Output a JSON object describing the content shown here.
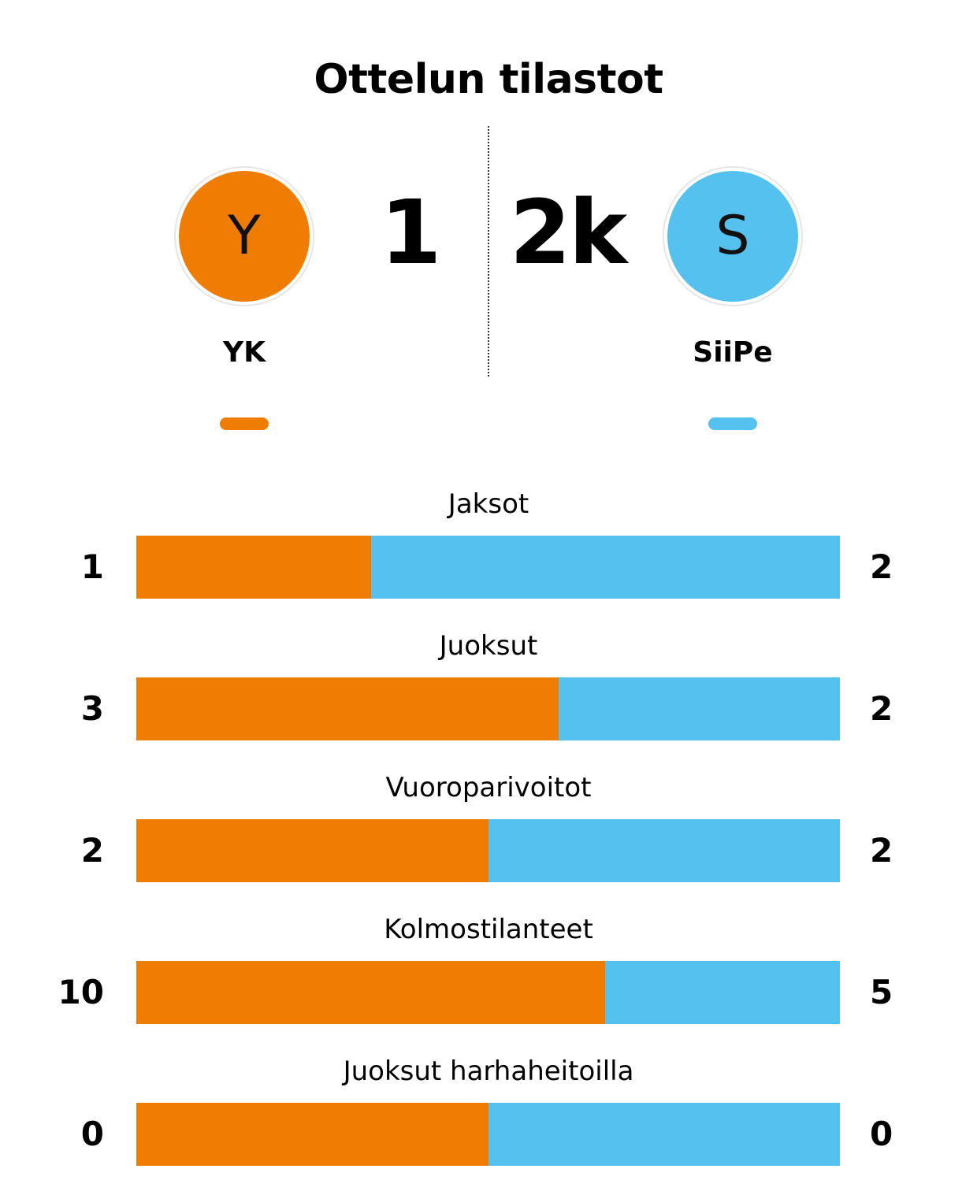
{
  "title": "Ottelun tilastot",
  "colors": {
    "home": "#ef7d04",
    "away": "#55c1ef"
  },
  "home": {
    "name": "YK",
    "logo_letter": "Y",
    "score": "1"
  },
  "away": {
    "name": "SiiPe",
    "logo_letter": "S",
    "score": "2k"
  },
  "stats": [
    {
      "label": "Jaksot",
      "home": "1",
      "away": "2",
      "home_share": 0.3333
    },
    {
      "label": "Juoksut",
      "home": "3",
      "away": "2",
      "home_share": 0.6
    },
    {
      "label": "Vuoroparivoitot",
      "home": "2",
      "away": "2",
      "home_share": 0.5
    },
    {
      "label": "Kolmostilanteet",
      "home": "10",
      "away": "5",
      "home_share": 0.6667
    },
    {
      "label": "Juoksut harhaheitoilla",
      "home": "0",
      "away": "0",
      "home_share": 0.5
    }
  ]
}
